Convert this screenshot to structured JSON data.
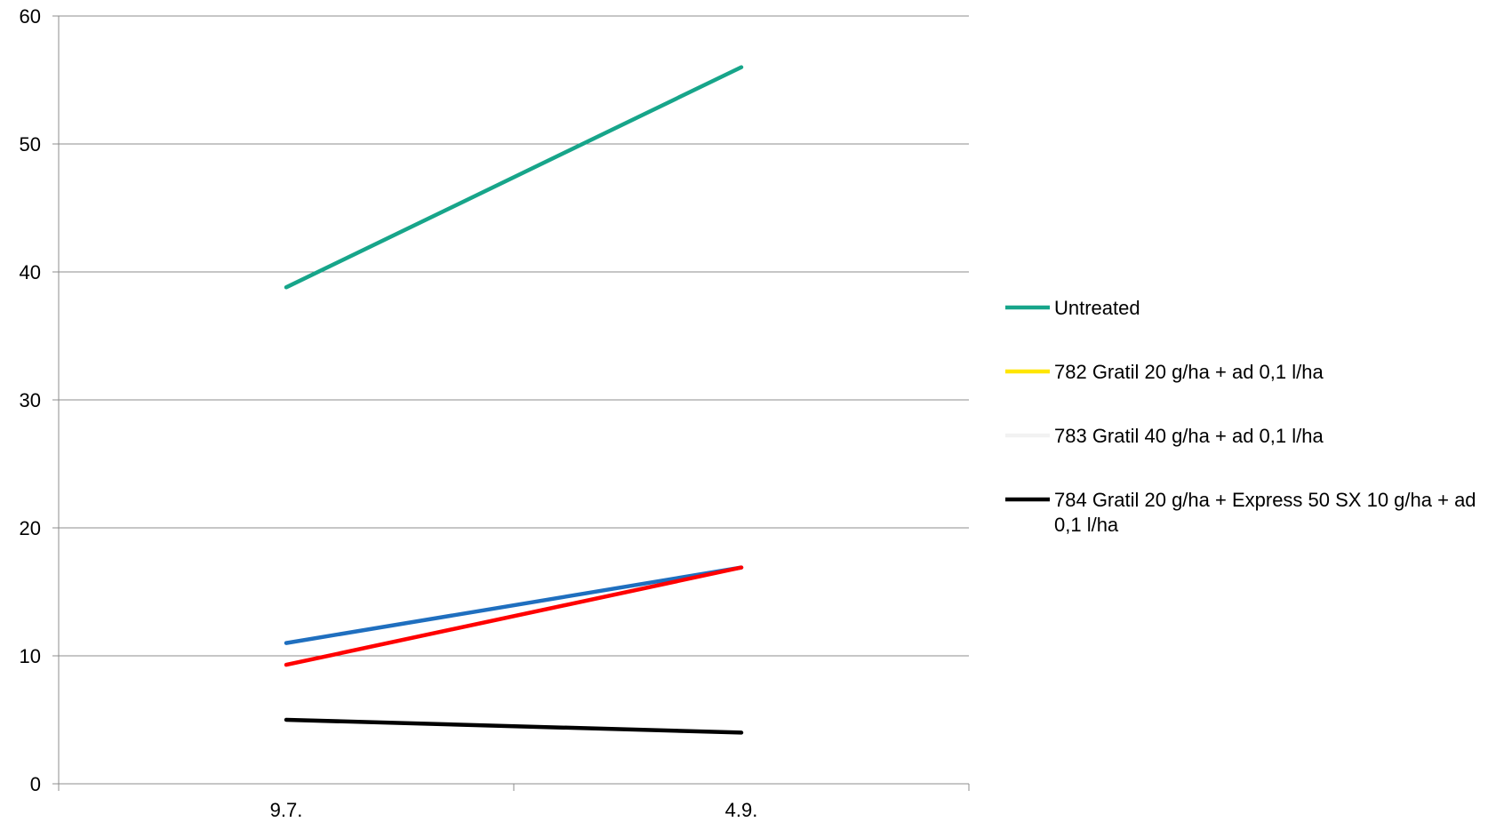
{
  "chart_data": {
    "type": "line",
    "title": "",
    "xlabel": "",
    "ylabel": "",
    "categories": [
      "9.7.",
      "4.9."
    ],
    "ylim": [
      0,
      60
    ],
    "yticks": [
      0,
      10,
      20,
      30,
      40,
      50,
      60
    ],
    "grid": true,
    "legend_position": "right",
    "series": [
      {
        "name": "Untreated",
        "color": "#17a58a",
        "values": [
          38.8,
          56.0
        ]
      },
      {
        "name": "782 Gratil 20 g/ha + ad 0,1 l/ha",
        "color": "#ffe600",
        "values": [
          null,
          null
        ]
      },
      {
        "name": "783 Gratil 40 g/ha + ad 0,1 l/ha",
        "color": "#f2f2f2",
        "values": [
          null,
          null
        ]
      },
      {
        "name": "784 Gratil 20 g/ha + Express 50 SX 10 g/ha + ad 0,1 l/ha",
        "color": "#000000",
        "values": [
          5.0,
          4.0
        ]
      },
      {
        "color": "#1f6fbf",
        "values": [
          11.0,
          16.9
        ]
      },
      {
        "color": "#ff0000",
        "values": [
          9.3,
          16.9
        ]
      }
    ]
  }
}
